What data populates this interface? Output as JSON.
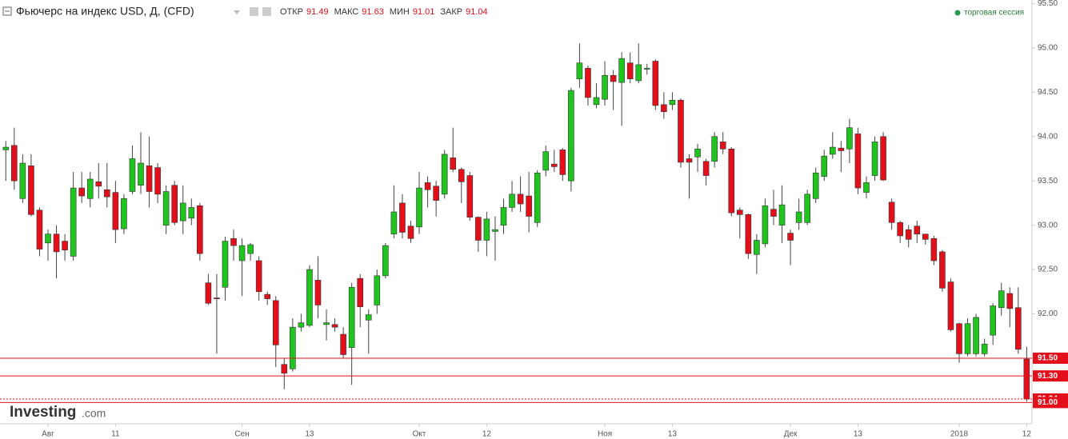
{
  "chart_data": {
    "type": "candlestick",
    "title": "Фьючерс на индекс USD, Д, (CFD)",
    "ohlc_labels": [
      "ОТКР",
      "МАКС",
      "МИН",
      "ЗАКР"
    ],
    "ohlc_values": [
      91.49,
      91.63,
      91.01,
      91.04
    ],
    "session": "торговая сессия",
    "logo": "Investing",
    "logo_suffix": ".com",
    "up_color": "#1fc41f",
    "down_color": "#e3101b",
    "ylim": [
      90.76,
      95.54
    ],
    "yticks": [
      {
        "value": 91,
        "label": "91.00"
      },
      {
        "value": 91.5,
        "label": "91.50"
      },
      {
        "value": 92,
        "label": "92.00"
      },
      {
        "value": 92.5,
        "label": "92.50"
      },
      {
        "value": 93,
        "label": "93.00"
      },
      {
        "value": 93.5,
        "label": "93.50"
      },
      {
        "value": 94,
        "label": "94.00"
      },
      {
        "value": 94.5,
        "label": "94.50"
      },
      {
        "value": 95,
        "label": "95.00"
      },
      {
        "value": 95.5,
        "label": "95.50"
      }
    ],
    "levels": [
      {
        "value": 91.5,
        "label": "91.50"
      },
      {
        "value": 91.3,
        "label": "91.30"
      },
      {
        "value": 91.04,
        "label": "91.04"
      },
      {
        "value": 91,
        "label": "91.00"
      }
    ],
    "categories": [
      null,
      null,
      null,
      null,
      null,
      "Авг",
      null,
      null,
      null,
      null,
      null,
      null,
      null,
      "11",
      null,
      null,
      null,
      null,
      null,
      null,
      null,
      null,
      null,
      null,
      null,
      null,
      null,
      null,
      "Сен",
      null,
      null,
      null,
      null,
      null,
      null,
      null,
      "13",
      null,
      null,
      null,
      null,
      null,
      null,
      null,
      null,
      null,
      null,
      null,
      null,
      "Окт",
      null,
      null,
      null,
      null,
      null,
      null,
      null,
      "12",
      null,
      null,
      null,
      null,
      null,
      null,
      null,
      null,
      null,
      null,
      null,
      null,
      null,
      "Ноя",
      null,
      null,
      null,
      null,
      null,
      null,
      null,
      "13",
      null,
      null,
      null,
      null,
      null,
      null,
      null,
      null,
      null,
      null,
      null,
      null,
      null,
      "Дек",
      null,
      null,
      null,
      null,
      null,
      null,
      null,
      "13",
      null,
      null,
      null,
      null,
      null,
      null,
      null,
      null,
      null,
      null,
      null,
      "2018",
      null,
      null,
      null,
      null,
      null,
      null,
      null,
      "12"
    ],
    "open": [
      93.85,
      93.9,
      93.3,
      93.67,
      93.17,
      92.8,
      92.9,
      92.82,
      92.65,
      93.42,
      93.3,
      93.49,
      93.4,
      93.37,
      92.96,
      93.38,
      93.45,
      93.67,
      93.65,
      93.0,
      93.45,
      93.05,
      93.08,
      93.22,
      92.35,
      92.18,
      92.3,
      92.85,
      92.6,
      92.68,
      92.6,
      92.22,
      92.15,
      91.43,
      91.38,
      91.85,
      91.87,
      92.38,
      91.88,
      91.88,
      91.77,
      91.62,
      92.4,
      91.93,
      92.1,
      92.43,
      92.9,
      93.25,
      92.99,
      92.98,
      93.48,
      93.44,
      93.35,
      93.76,
      93.63,
      93.56,
      93.09,
      92.83,
      92.93,
      93.0,
      93.2,
      93.35,
      93.33,
      93.03,
      93.62,
      93.69,
      93.85,
      93.5,
      94.65,
      94.77,
      94.36,
      94.42,
      94.69,
      94.61,
      94.83,
      94.63,
      94.76,
      94.85,
      94.36,
      94.36,
      94.41,
      93.75,
      93.77,
      93.72,
      93.72,
      93.94,
      93.86,
      93.17,
      93.12,
      92.67,
      92.79,
      93.18,
      93.0,
      92.91,
      93.03,
      93.03,
      93.3,
      93.55,
      93.8,
      93.87,
      93.86,
      94.03,
      93.37,
      93.56,
      94.0,
      93.26,
      93.03,
      92.95,
      92.99,
      92.9,
      92.85,
      92.7,
      92.36,
      91.89,
      91.55,
      91.55,
      91.55,
      91.76,
      92.07,
      92.23,
      92.07,
      91.49
    ],
    "high": [
      93.95,
      94.1,
      93.8,
      93.8,
      93.2,
      92.95,
      93.0,
      92.9,
      93.6,
      93.6,
      93.6,
      93.7,
      93.7,
      93.5,
      93.35,
      93.9,
      94.05,
      94.0,
      93.7,
      93.45,
      93.5,
      93.45,
      93.3,
      93.25,
      92.45,
      92.45,
      92.87,
      92.95,
      92.85,
      92.8,
      92.65,
      92.25,
      92.2,
      91.5,
      91.95,
      92.0,
      92.55,
      92.65,
      92.05,
      91.95,
      91.85,
      92.35,
      92.45,
      92.05,
      92.5,
      92.8,
      93.45,
      93.35,
      93.05,
      93.6,
      93.55,
      93.5,
      93.85,
      94.1,
      93.65,
      93.6,
      93.1,
      93.15,
      93.1,
      93.3,
      93.5,
      93.55,
      93.6,
      93.62,
      93.9,
      93.85,
      93.87,
      94.55,
      95.05,
      94.8,
      94.6,
      94.85,
      94.75,
      94.95,
      94.95,
      95.05,
      94.82,
      94.87,
      94.5,
      94.5,
      94.43,
      93.8,
      93.92,
      93.75,
      94.05,
      94.05,
      93.88,
      93.2,
      93.13,
      92.9,
      93.3,
      93.4,
      93.45,
      92.95,
      93.3,
      93.4,
      93.65,
      93.85,
      94.05,
      93.95,
      94.2,
      94.1,
      93.55,
      94.0,
      94.05,
      93.3,
      93.05,
      93.0,
      93.05,
      92.9,
      92.88,
      92.72,
      92.4,
      91.9,
      91.95,
      92.0,
      91.72,
      92.12,
      92.35,
      92.3,
      92.3,
      91.63
    ],
    "low": [
      93.5,
      93.4,
      93.25,
      93.1,
      92.65,
      92.6,
      92.4,
      92.6,
      92.6,
      93.25,
      93.2,
      93.3,
      93.2,
      92.8,
      92.9,
      93.35,
      93.35,
      93.2,
      93.25,
      92.9,
      93.0,
      92.9,
      93.0,
      92.6,
      92.1,
      91.55,
      92.15,
      92.6,
      92.2,
      92.6,
      92.15,
      92.1,
      91.4,
      91.15,
      91.35,
      91.8,
      91.85,
      91.95,
      91.7,
      91.8,
      91.5,
      91.2,
      91.85,
      91.55,
      92.0,
      92.4,
      92.85,
      92.85,
      92.8,
      92.9,
      93.2,
      93.1,
      93.3,
      93.6,
      93.25,
      93.05,
      92.7,
      92.65,
      92.6,
      92.9,
      93.15,
      93.15,
      92.92,
      92.98,
      93.55,
      93.6,
      93.5,
      93.38,
      94.55,
      94.35,
      94.32,
      94.35,
      94.3,
      94.12,
      94.6,
      94.6,
      94.7,
      94.3,
      94.2,
      94.3,
      93.65,
      93.3,
      93.6,
      93.45,
      93.65,
      93.8,
      93.1,
      92.85,
      92.62,
      92.45,
      92.75,
      93.0,
      92.8,
      92.55,
      92.95,
      93.0,
      93.25,
      93.5,
      93.75,
      93.6,
      93.7,
      93.35,
      93.3,
      93.5,
      93.5,
      92.95,
      92.8,
      92.75,
      92.8,
      92.78,
      92.55,
      92.25,
      91.8,
      91.45,
      91.52,
      91.52,
      91.52,
      91.65,
      91.98,
      91.85,
      91.55,
      91.01
    ],
    "close": [
      93.88,
      93.5,
      93.7,
      93.12,
      92.73,
      92.9,
      92.7,
      92.72,
      93.42,
      93.33,
      93.52,
      93.44,
      93.32,
      92.95,
      93.3,
      93.75,
      93.7,
      93.38,
      93.35,
      93.38,
      93.03,
      93.25,
      93.2,
      92.68,
      92.12,
      92.17,
      92.82,
      92.77,
      92.77,
      92.78,
      92.25,
      92.17,
      91.65,
      91.33,
      91.85,
      91.9,
      92.5,
      92.1,
      91.9,
      91.85,
      91.54,
      92.3,
      92.08,
      91.99,
      92.43,
      92.77,
      93.15,
      92.92,
      92.85,
      93.42,
      93.4,
      93.28,
      93.8,
      93.63,
      93.49,
      93.09,
      92.83,
      93.07,
      92.95,
      93.2,
      93.35,
      93.24,
      93.1,
      93.59,
      93.83,
      93.66,
      93.57,
      94.52,
      94.83,
      94.44,
      94.44,
      94.69,
      94.62,
      94.88,
      94.65,
      94.81,
      94.77,
      94.35,
      94.28,
      94.41,
      93.71,
      93.71,
      93.86,
      93.56,
      94.0,
      93.86,
      93.14,
      93.12,
      92.68,
      92.83,
      93.22,
      93.1,
      93.23,
      92.83,
      93.15,
      93.35,
      93.59,
      93.78,
      93.88,
      93.84,
      94.1,
      93.42,
      93.48,
      93.94,
      93.51,
      93.03,
      92.88,
      92.84,
      92.9,
      92.84,
      92.6,
      92.29,
      91.82,
      91.55,
      91.89,
      91.96,
      91.66,
      92.09,
      92.26,
      92.06,
      91.6,
      91.04
    ]
  }
}
